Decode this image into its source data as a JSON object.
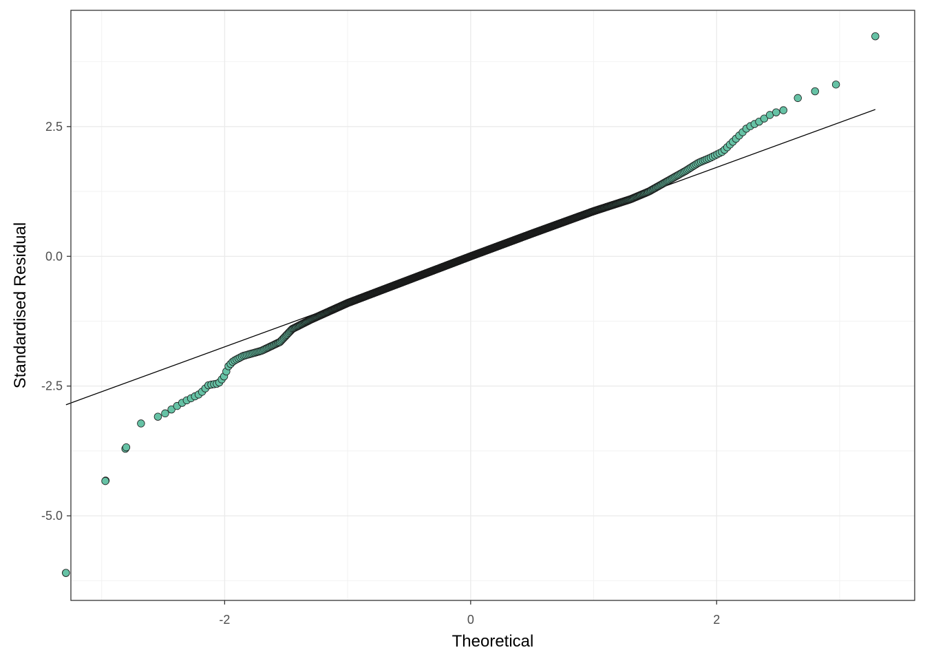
{
  "chart_data": {
    "type": "scatter",
    "title": "",
    "xlabel": "Theoretical",
    "ylabel": "Standardised Residual",
    "xlim": [
      -3.25,
      3.61
    ],
    "ylim": [
      -6.63,
      4.74
    ],
    "x_ticks": [
      -2,
      0,
      2
    ],
    "x_tick_labels": [
      "-2",
      "0",
      "2"
    ],
    "y_ticks": [
      -5.0,
      -2.5,
      0.0,
      2.5
    ],
    "y_tick_labels": [
      "-5.0",
      "-2.5",
      "0.0",
      "2.5"
    ],
    "grid": true,
    "legend": "none",
    "point_fill": "#66c2a5",
    "point_stroke": "#1a1a1a",
    "reference_line": {
      "x": [
        -3.29,
        3.29
      ],
      "y": [
        -2.86,
        2.83
      ]
    },
    "anchor_points": [
      [
        -3.29,
        -6.1
      ],
      [
        -2.97,
        -4.33
      ],
      [
        -2.8,
        -3.68
      ],
      [
        -2.68,
        -3.22
      ],
      [
        -2.5,
        -3.05
      ],
      [
        -2.33,
        -2.8
      ],
      [
        -2.2,
        -2.65
      ],
      [
        -2.13,
        -2.48
      ],
      [
        -2.05,
        -2.45
      ],
      [
        -2.0,
        -2.3
      ],
      [
        -1.97,
        -2.12
      ],
      [
        -1.93,
        -2.02
      ],
      [
        -1.85,
        -1.92
      ],
      [
        -1.7,
        -1.82
      ],
      [
        -1.55,
        -1.65
      ],
      [
        -1.45,
        -1.4
      ],
      [
        -1.3,
        -1.22
      ],
      [
        -1.0,
        -0.9
      ],
      [
        -0.5,
        -0.45
      ],
      [
        0.0,
        0.0
      ],
      [
        0.5,
        0.44
      ],
      [
        1.0,
        0.87
      ],
      [
        1.3,
        1.1
      ],
      [
        1.45,
        1.25
      ],
      [
        1.6,
        1.45
      ],
      [
        1.75,
        1.65
      ],
      [
        1.85,
        1.8
      ],
      [
        1.95,
        1.9
      ],
      [
        2.05,
        2.02
      ],
      [
        2.15,
        2.25
      ],
      [
        2.25,
        2.48
      ],
      [
        2.35,
        2.6
      ],
      [
        2.45,
        2.75
      ],
      [
        2.55,
        2.82
      ]
    ],
    "outer_points": [
      [
        2.66,
        3.05
      ],
      [
        2.8,
        3.18
      ],
      [
        2.97,
        3.31
      ],
      [
        3.29,
        4.24
      ]
    ],
    "n_points": 1000
  }
}
